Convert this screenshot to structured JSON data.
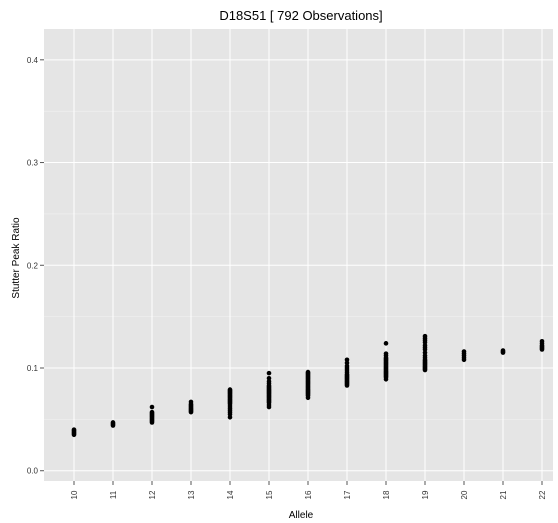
{
  "chart_data": {
    "type": "scatter",
    "title": "D18S51  [ 792  Observations]",
    "xlabel": "Allele",
    "ylabel": "Stutter Peak Ratio",
    "categories": [
      "10",
      "11",
      "12",
      "13",
      "14",
      "15",
      "16",
      "17",
      "18",
      "19",
      "20",
      "21",
      "22"
    ],
    "y_ticks": [
      "0.0",
      "0.1",
      "0.2",
      "0.3",
      "0.4"
    ],
    "ylim": [
      -0.01,
      0.43
    ],
    "grid": true,
    "colors": {
      "panel": "#e5e5e5",
      "grid": "#ffffff",
      "point": "#000000"
    },
    "series": [
      {
        "values": [
          [
            0.035,
            0.036,
            0.037,
            0.038,
            0.039,
            0.04
          ],
          [
            0.044,
            0.045,
            0.046,
            0.047
          ],
          [
            0.047,
            0.048,
            0.049,
            0.05,
            0.051,
            0.052,
            0.053,
            0.054,
            0.055,
            0.056,
            0.057,
            0.062
          ],
          [
            0.057,
            0.058,
            0.059,
            0.06,
            0.061,
            0.062,
            0.063,
            0.064,
            0.065,
            0.067
          ],
          [
            0.052,
            0.055,
            0.057,
            0.059,
            0.061,
            0.063,
            0.065,
            0.066,
            0.067,
            0.068,
            0.069,
            0.07,
            0.071,
            0.072,
            0.073,
            0.074,
            0.075,
            0.076,
            0.077,
            0.078,
            0.079
          ],
          [
            0.062,
            0.064,
            0.066,
            0.067,
            0.068,
            0.069,
            0.07,
            0.071,
            0.072,
            0.073,
            0.074,
            0.075,
            0.076,
            0.077,
            0.078,
            0.079,
            0.08,
            0.081,
            0.082,
            0.083,
            0.085,
            0.087,
            0.09,
            0.095
          ],
          [
            0.071,
            0.073,
            0.074,
            0.075,
            0.076,
            0.077,
            0.078,
            0.079,
            0.08,
            0.081,
            0.082,
            0.083,
            0.084,
            0.085,
            0.086,
            0.087,
            0.088,
            0.089,
            0.09,
            0.091,
            0.092,
            0.093,
            0.094,
            0.095,
            0.096
          ],
          [
            0.083,
            0.084,
            0.085,
            0.086,
            0.087,
            0.088,
            0.089,
            0.09,
            0.091,
            0.092,
            0.093,
            0.094,
            0.096,
            0.098,
            0.1,
            0.102,
            0.105,
            0.108
          ],
          [
            0.089,
            0.091,
            0.092,
            0.093,
            0.094,
            0.095,
            0.096,
            0.097,
            0.098,
            0.099,
            0.1,
            0.101,
            0.102,
            0.103,
            0.104,
            0.105,
            0.106,
            0.107,
            0.108,
            0.109,
            0.11,
            0.112,
            0.114,
            0.124
          ],
          [
            0.098,
            0.099,
            0.1,
            0.101,
            0.102,
            0.103,
            0.104,
            0.105,
            0.106,
            0.107,
            0.108,
            0.11,
            0.112,
            0.115,
            0.118,
            0.12,
            0.122,
            0.125,
            0.127,
            0.129,
            0.131
          ],
          [
            0.108,
            0.11,
            0.112,
            0.114,
            0.116
          ],
          [
            0.115,
            0.116,
            0.117
          ],
          [
            0.118,
            0.119,
            0.12,
            0.121,
            0.122,
            0.124,
            0.126
          ]
        ]
      }
    ]
  }
}
